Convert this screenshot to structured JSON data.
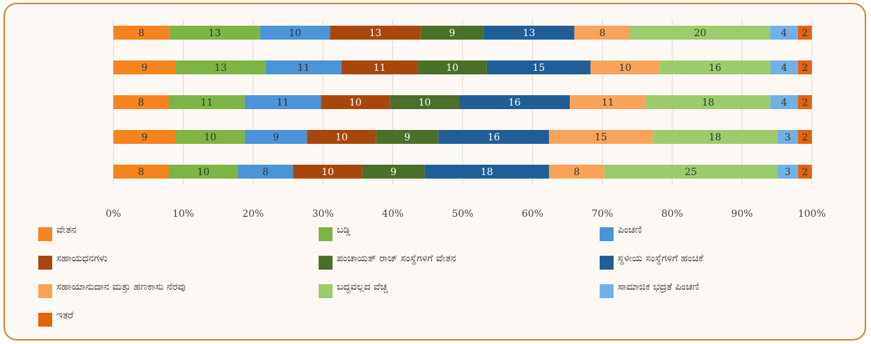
{
  "chart_data": {
    "type": "bar",
    "orientation": "horizontal",
    "stacked": "percent",
    "categories": [
      null,
      null,
      null,
      null,
      null
    ],
    "series": [
      {
        "name": "ವೇತನ",
        "color": "#f5841f",
        "values": [
          8,
          9,
          8,
          9,
          8
        ]
      },
      {
        "name": "ಬಡ್ಡಿ",
        "color": "#7db443",
        "values": [
          13,
          13,
          11,
          10,
          10
        ]
      },
      {
        "name": "ಪಿಂಚಣಿ",
        "color": "#4b94d8",
        "values": [
          10,
          11,
          11,
          9,
          8
        ]
      },
      {
        "name": "ಸಹಾಯಧನಗಳು",
        "color": "#a8470d",
        "values": [
          13,
          11,
          10,
          10,
          10
        ]
      },
      {
        "name": "ಪಂಚಾಯತ್ ರಾಜ್ ಸಂಸ್ಥೆಗಳಿಗೆ ವೇತನ",
        "color": "#4a6f28",
        "values": [
          9,
          10,
          10,
          9,
          9
        ]
      },
      {
        "name": "ಸ್ಥಳೀಯ ಸಂಸ್ಥೆಗಳಿಗೆ ಹಂಚಿಕೆ",
        "color": "#1f5f96",
        "values": [
          13,
          15,
          16,
          16,
          18
        ]
      },
      {
        "name": "ಸಹಾಯಾನುದಾನ ಮತ್ತು ಹಣಕಾಸು ನೆರವು",
        "color": "#f9a35a",
        "values": [
          8,
          10,
          11,
          15,
          8
        ]
      },
      {
        "name": "ಬದ್ಧವಲ್ಲದ ವೆಚ್ಚ",
        "color": "#9ccb6c",
        "values": [
          20,
          16,
          18,
          18,
          25
        ]
      },
      {
        "name": "ಸಾಮಾಜಿಕ ಭದ್ರತೆ ಪಿಂಚಣಿ",
        "color": "#72b1e6",
        "values": [
          4,
          4,
          4,
          3,
          3
        ]
      },
      {
        "name": "ಇತರೆ",
        "color": "#e3630e",
        "values": [
          2,
          2,
          2,
          2,
          2
        ]
      }
    ],
    "xlim": [
      0,
      100
    ],
    "xticks": [
      {
        "value": 0,
        "label": "0%"
      },
      {
        "value": 10,
        "label": "10%"
      },
      {
        "value": 20,
        "label": "20%"
      },
      {
        "value": 30,
        "label": "30%"
      },
      {
        "value": 40,
        "label": "40%"
      },
      {
        "value": 50,
        "label": "50%"
      },
      {
        "value": 60,
        "label": "60%"
      },
      {
        "value": 70,
        "label": "70%"
      },
      {
        "value": 80,
        "label": "80%"
      },
      {
        "value": 90,
        "label": "90%"
      },
      {
        "value": 100,
        "label": "100%"
      }
    ],
    "grid": true,
    "legend": "bottom"
  }
}
